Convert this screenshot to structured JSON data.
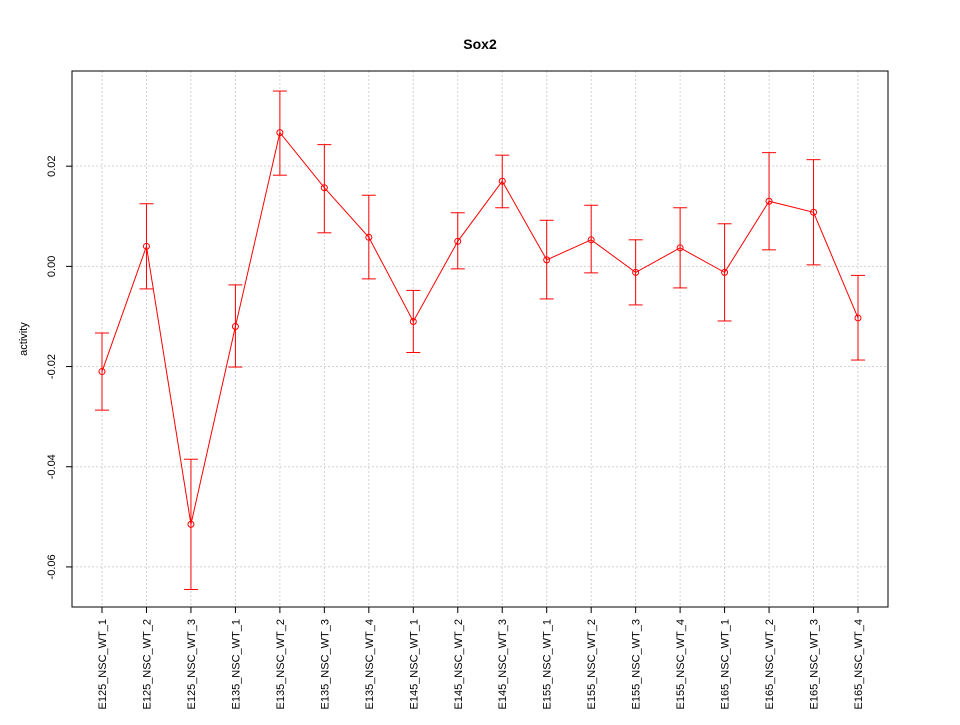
{
  "chart_data": {
    "type": "line",
    "title": "Sox2",
    "xlabel": "",
    "ylabel": "activity",
    "categories": [
      "E125_NSC_WT_1",
      "E125_NSC_WT_2",
      "E125_NSC_WT_3",
      "E135_NSC_WT_1",
      "E135_NSC_WT_2",
      "E135_NSC_WT_3",
      "E135_NSC_WT_4",
      "E145_NSC_WT_1",
      "E145_NSC_WT_2",
      "E145_NSC_WT_3",
      "E155_NSC_WT_1",
      "E155_NSC_WT_2",
      "E155_NSC_WT_3",
      "E155_NSC_WT_4",
      "E165_NSC_WT_1",
      "E165_NSC_WT_2",
      "E165_NSC_WT_3",
      "E165_NSC_WT_4"
    ],
    "series": [
      {
        "values": [
          -0.021,
          0.004,
          -0.0515,
          -0.012,
          0.0267,
          0.0157,
          0.0058,
          -0.011,
          0.005,
          0.017,
          0.0013,
          0.0053,
          -0.0012,
          0.0037,
          -0.0012,
          0.013,
          0.0108,
          -0.0103
        ],
        "upper": [
          -0.0133,
          0.0125,
          -0.0385,
          -0.0037,
          0.035,
          0.0243,
          0.0142,
          -0.0048,
          0.0107,
          0.0222,
          0.0092,
          0.0122,
          0.0053,
          0.0117,
          0.0085,
          0.0227,
          0.0213,
          -0.0018
        ],
        "lower": [
          -0.0287,
          -0.0045,
          -0.0645,
          -0.0201,
          0.0182,
          0.0067,
          -0.0025,
          -0.0172,
          -0.0005,
          0.0117,
          -0.0065,
          -0.0013,
          -0.0077,
          -0.0043,
          -0.0109,
          0.0033,
          0.0003,
          -0.0187
        ]
      }
    ],
    "yticks": [
      "0.02",
      "0.00",
      "-0.02",
      "-0.04",
      "-0.06"
    ],
    "ytick_values": [
      0.02,
      0.0,
      -0.02,
      -0.04,
      -0.06
    ],
    "ylim": [
      -0.068,
      0.039
    ],
    "grid": true,
    "series_color": "#ff0000",
    "grid_color": "#d3d3d3"
  }
}
